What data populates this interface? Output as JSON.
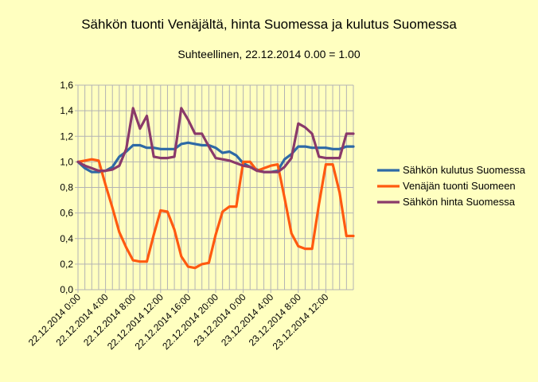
{
  "chart_data": {
    "type": "line",
    "title": "Sähkön tuonti Venäjältä, hinta Suomessa ja kulutus Suomessa",
    "subtitle": "Suhteellinen, 22.12.2014 0.00 = 1.00",
    "xlabel": "",
    "ylabel": "",
    "ylim": [
      0,
      1.6
    ],
    "y_ticks": [
      "0,0",
      "0,2",
      "0,4",
      "0,6",
      "0,8",
      "1,0",
      "1,2",
      "1,4",
      "1,6"
    ],
    "x_tick_labels": [
      "22.12.2014 0:00",
      "22.12.2014 4:00",
      "22.12.2014 8:00",
      "22.12.2014 12:00",
      "22.12.2014 16:00",
      "22.12.2014 20:00",
      "23.12.2014 0:00",
      "23.12.2014 4:00",
      "23.12.2014 8:00",
      "23.12.2014 12:00"
    ],
    "x_hours": [
      0,
      1,
      2,
      3,
      4,
      5,
      6,
      7,
      8,
      9,
      10,
      11,
      12,
      13,
      14,
      15,
      16,
      17,
      18,
      19,
      20,
      21,
      22,
      23,
      24,
      25,
      26,
      27,
      28,
      29,
      30,
      31,
      32,
      33,
      34,
      35,
      36,
      37,
      38,
      39,
      40
    ],
    "grid": true,
    "legend_position": "right",
    "series": [
      {
        "name": "Sähkön kulutus Suomessa",
        "color": "#2e6aa6",
        "values": [
          1.0,
          0.95,
          0.92,
          0.92,
          0.93,
          0.96,
          1.04,
          1.08,
          1.13,
          1.13,
          1.11,
          1.11,
          1.1,
          1.1,
          1.1,
          1.14,
          1.15,
          1.14,
          1.13,
          1.13,
          1.11,
          1.07,
          1.08,
          1.05,
          0.99,
          0.96,
          0.94,
          0.92,
          0.92,
          0.93,
          1.02,
          1.06,
          1.12,
          1.12,
          1.11,
          1.11,
          1.11,
          1.1,
          1.1,
          1.12,
          1.12
        ]
      },
      {
        "name": "Venäjän tuonti Suomeen",
        "color": "#ff5a10",
        "values": [
          1.0,
          1.01,
          1.02,
          1.01,
          0.82,
          0.64,
          0.45,
          0.33,
          0.23,
          0.22,
          0.22,
          0.43,
          0.62,
          0.61,
          0.47,
          0.26,
          0.18,
          0.17,
          0.2,
          0.21,
          0.43,
          0.61,
          0.65,
          0.65,
          1.0,
          1.0,
          0.93,
          0.95,
          0.97,
          0.98,
          0.72,
          0.44,
          0.34,
          0.32,
          0.32,
          0.67,
          0.98,
          0.98,
          0.76,
          0.42,
          0.42
        ]
      },
      {
        "name": "Sähkön hinta Suomessa",
        "color": "#8a3a6a",
        "values": [
          1.0,
          0.97,
          0.95,
          0.93,
          0.93,
          0.94,
          0.97,
          1.1,
          1.42,
          1.26,
          1.36,
          1.04,
          1.03,
          1.03,
          1.04,
          1.42,
          1.33,
          1.22,
          1.22,
          1.12,
          1.03,
          1.02,
          1.01,
          0.99,
          0.97,
          0.96,
          0.93,
          0.92,
          0.92,
          0.92,
          0.96,
          1.03,
          1.3,
          1.27,
          1.22,
          1.04,
          1.03,
          1.03,
          1.03,
          1.22,
          1.22
        ]
      }
    ]
  }
}
